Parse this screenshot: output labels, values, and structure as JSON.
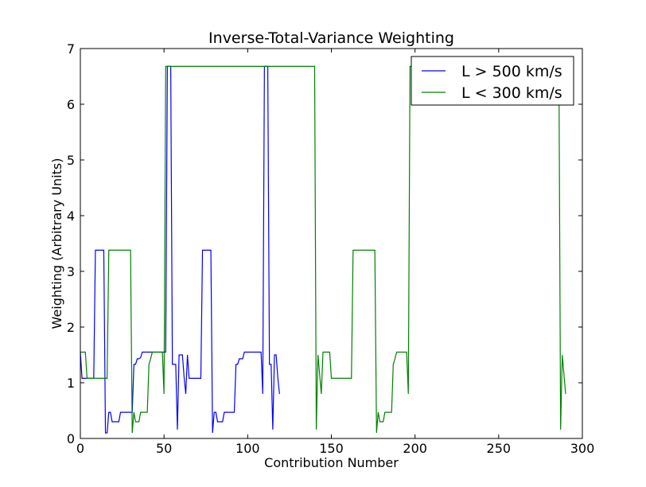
{
  "chart_data": {
    "type": "line",
    "title": "Inverse-Total-Variance Weighting",
    "xlabel": "Contribution Number",
    "ylabel": "Weighting (Arbitrary Units)",
    "xlim": [
      0,
      300
    ],
    "ylim": [
      0,
      7
    ],
    "xticks": [
      "0",
      "50",
      "100",
      "150",
      "200",
      "250",
      "300"
    ],
    "yticks": [
      "0",
      "1",
      "2",
      "3",
      "4",
      "5",
      "6",
      "7"
    ],
    "legend_position": "top-right",
    "grid": false,
    "series": [
      {
        "name": "L > 500 km/s",
        "color": "#0000ff",
        "points": [
          [
            0,
            1.55
          ],
          [
            1,
            1.08
          ],
          [
            8,
            1.08
          ],
          [
            9,
            3.38
          ],
          [
            14,
            3.38
          ],
          [
            15,
            0.1
          ],
          [
            16,
            0.1
          ],
          [
            17,
            0.47
          ],
          [
            18,
            0.47
          ],
          [
            19,
            0.3
          ],
          [
            23,
            0.3
          ],
          [
            24,
            0.47
          ],
          [
            31,
            0.47
          ],
          [
            32,
            1.33
          ],
          [
            33,
            1.33
          ],
          [
            34,
            1.43
          ],
          [
            35,
            1.43
          ],
          [
            36,
            1.45
          ],
          [
            37,
            1.55
          ],
          [
            51,
            1.55
          ],
          [
            52,
            6.68
          ],
          [
            54,
            6.68
          ],
          [
            55,
            1.33
          ],
          [
            57,
            1.33
          ],
          [
            58,
            0.16
          ],
          [
            59,
            1.5
          ],
          [
            61,
            1.5
          ],
          [
            62,
            1.1
          ],
          [
            63,
            0.8
          ],
          [
            64,
            1.5
          ],
          [
            65,
            1.08
          ],
          [
            72,
            1.08
          ],
          [
            73,
            3.38
          ],
          [
            78,
            3.38
          ],
          [
            79,
            0.1
          ],
          [
            80,
            0.47
          ],
          [
            81,
            0.47
          ],
          [
            82,
            0.3
          ],
          [
            85,
            0.3
          ],
          [
            86,
            0.47
          ],
          [
            92,
            0.47
          ],
          [
            93,
            1.33
          ],
          [
            94,
            1.33
          ],
          [
            95,
            1.43
          ],
          [
            97,
            1.43
          ],
          [
            98,
            1.55
          ],
          [
            108,
            1.55
          ],
          [
            109,
            0.8
          ],
          [
            110,
            6.68
          ],
          [
            112,
            6.68
          ],
          [
            113,
            1.33
          ],
          [
            114,
            1.33
          ],
          [
            115,
            0.16
          ],
          [
            116,
            1.5
          ],
          [
            117,
            1.5
          ],
          [
            118,
            1.1
          ],
          [
            119,
            0.8
          ]
        ]
      },
      {
        "name": "L < 300 km/s",
        "color": "#008000",
        "points": [
          [
            0,
            1.55
          ],
          [
            3,
            1.55
          ],
          [
            4,
            1.08
          ],
          [
            16,
            1.08
          ],
          [
            17,
            3.38
          ],
          [
            30,
            3.38
          ],
          [
            31,
            0.1
          ],
          [
            32,
            0.47
          ],
          [
            33,
            0.3
          ],
          [
            35,
            0.3
          ],
          [
            36,
            0.47
          ],
          [
            40,
            0.47
          ],
          [
            41,
            1.33
          ],
          [
            42,
            1.43
          ],
          [
            43,
            1.55
          ],
          [
            49,
            1.55
          ],
          [
            50,
            0.8
          ],
          [
            51,
            6.68
          ],
          [
            140,
            6.68
          ],
          [
            141,
            0.16
          ],
          [
            142,
            1.5
          ],
          [
            144,
            0.8
          ],
          [
            145,
            1.55
          ],
          [
            149,
            1.55
          ],
          [
            150,
            1.08
          ],
          [
            162,
            1.08
          ],
          [
            163,
            3.38
          ],
          [
            176,
            3.38
          ],
          [
            177,
            0.1
          ],
          [
            178,
            0.47
          ],
          [
            179,
            0.3
          ],
          [
            181,
            0.3
          ],
          [
            182,
            0.47
          ],
          [
            186,
            0.47
          ],
          [
            187,
            1.33
          ],
          [
            188,
            1.43
          ],
          [
            189,
            1.55
          ],
          [
            195,
            1.55
          ],
          [
            196,
            0.8
          ],
          [
            197,
            6.68
          ],
          [
            286,
            6.68
          ],
          [
            287,
            0.16
          ],
          [
            288,
            1.5
          ],
          [
            290,
            0.8
          ]
        ]
      }
    ]
  }
}
